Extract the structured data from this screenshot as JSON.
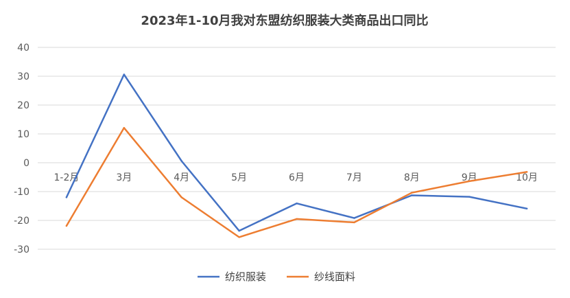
{
  "chart_data": {
    "type": "line",
    "title": "2023年1-10月我对东盟纺织服装大类商品出口同比",
    "categories": [
      "1-2月",
      "3月",
      "4月",
      "5月",
      "6月",
      "7月",
      "8月",
      "9月",
      "10月"
    ],
    "yticks": [
      "40",
      "30",
      "20",
      "10",
      "0",
      "-10",
      "-20",
      "-30"
    ],
    "ylim": [
      -30,
      40
    ],
    "grid": true,
    "legend_position": "bottom",
    "series": [
      {
        "name": "纺织服装",
        "color": "#4472c4",
        "values": [
          -12,
          30.6,
          0.6,
          -23.6,
          -14.1,
          -19.2,
          -11.3,
          -11.8,
          -15.9
        ]
      },
      {
        "name": "纱线面料",
        "color": "#ed7d31",
        "values": [
          -21.9,
          12.1,
          -12,
          -25.8,
          -19.5,
          -20.7,
          -10.4,
          -6.4,
          -3.2
        ]
      }
    ]
  }
}
